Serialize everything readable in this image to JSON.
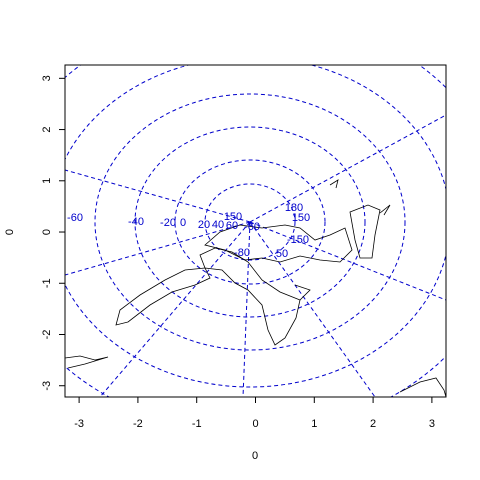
{
  "chart_data": {
    "type": "map",
    "xlabel": "0",
    "ylabel": "0",
    "xlim": [
      -3.24,
      3.24
    ],
    "ylim": [
      -3.22,
      3.26
    ],
    "xticks": [
      -3,
      -2,
      -1,
      0,
      1,
      2,
      3
    ],
    "yticks": [
      -3,
      -2,
      -1,
      0,
      1,
      2,
      3
    ],
    "annotations": [
      "-60",
      "-40",
      "-20",
      "0",
      "20",
      "40",
      "60",
      "150",
      "-60",
      "180",
      "150",
      "-150",
      "50",
      "-80"
    ]
  }
}
